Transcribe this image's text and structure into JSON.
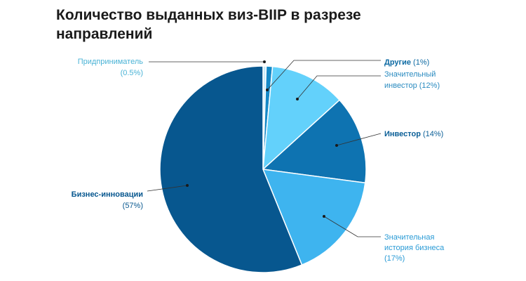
{
  "chart_data": {
    "type": "pie",
    "title": "Количество выданных виз-BIIP в разрезе направлений",
    "slices": [
      {
        "label": "Придприниматель",
        "value": 0.5,
        "value_text": "(0.5%)",
        "color": "#c9ecfb",
        "label_color": "#4ab3d6"
      },
      {
        "label": "Другие",
        "value": 1,
        "value_text": "(1%)",
        "color": "#1589c7",
        "label_color": "#0d6aa3"
      },
      {
        "label": "Значительный инвестор",
        "label_lines": [
          "Значительный",
          "инвестор (12%)"
        ],
        "value": 12,
        "value_text": "(12%)",
        "color": "#63d1fb",
        "label_color": "#2a8bc0"
      },
      {
        "label": "Инвестор",
        "value": 14,
        "value_text": "(14%)",
        "color": "#0e73b1",
        "label_color": "#0b5f97"
      },
      {
        "label": "Значительная история бизнеса",
        "label_lines": [
          "Значительная",
          "история бизнеса",
          "(17%)"
        ],
        "value": 17,
        "value_text": "(17%)",
        "color": "#3eb4ef",
        "label_color": "#2a9bd6"
      },
      {
        "label": "Бизнес-инновации",
        "value": 57,
        "value_text": "(57%)",
        "color": "#07578f",
        "label_color": "#07578f"
      }
    ],
    "legend": "none",
    "start_angle": "12 o'clock, clockwise"
  }
}
